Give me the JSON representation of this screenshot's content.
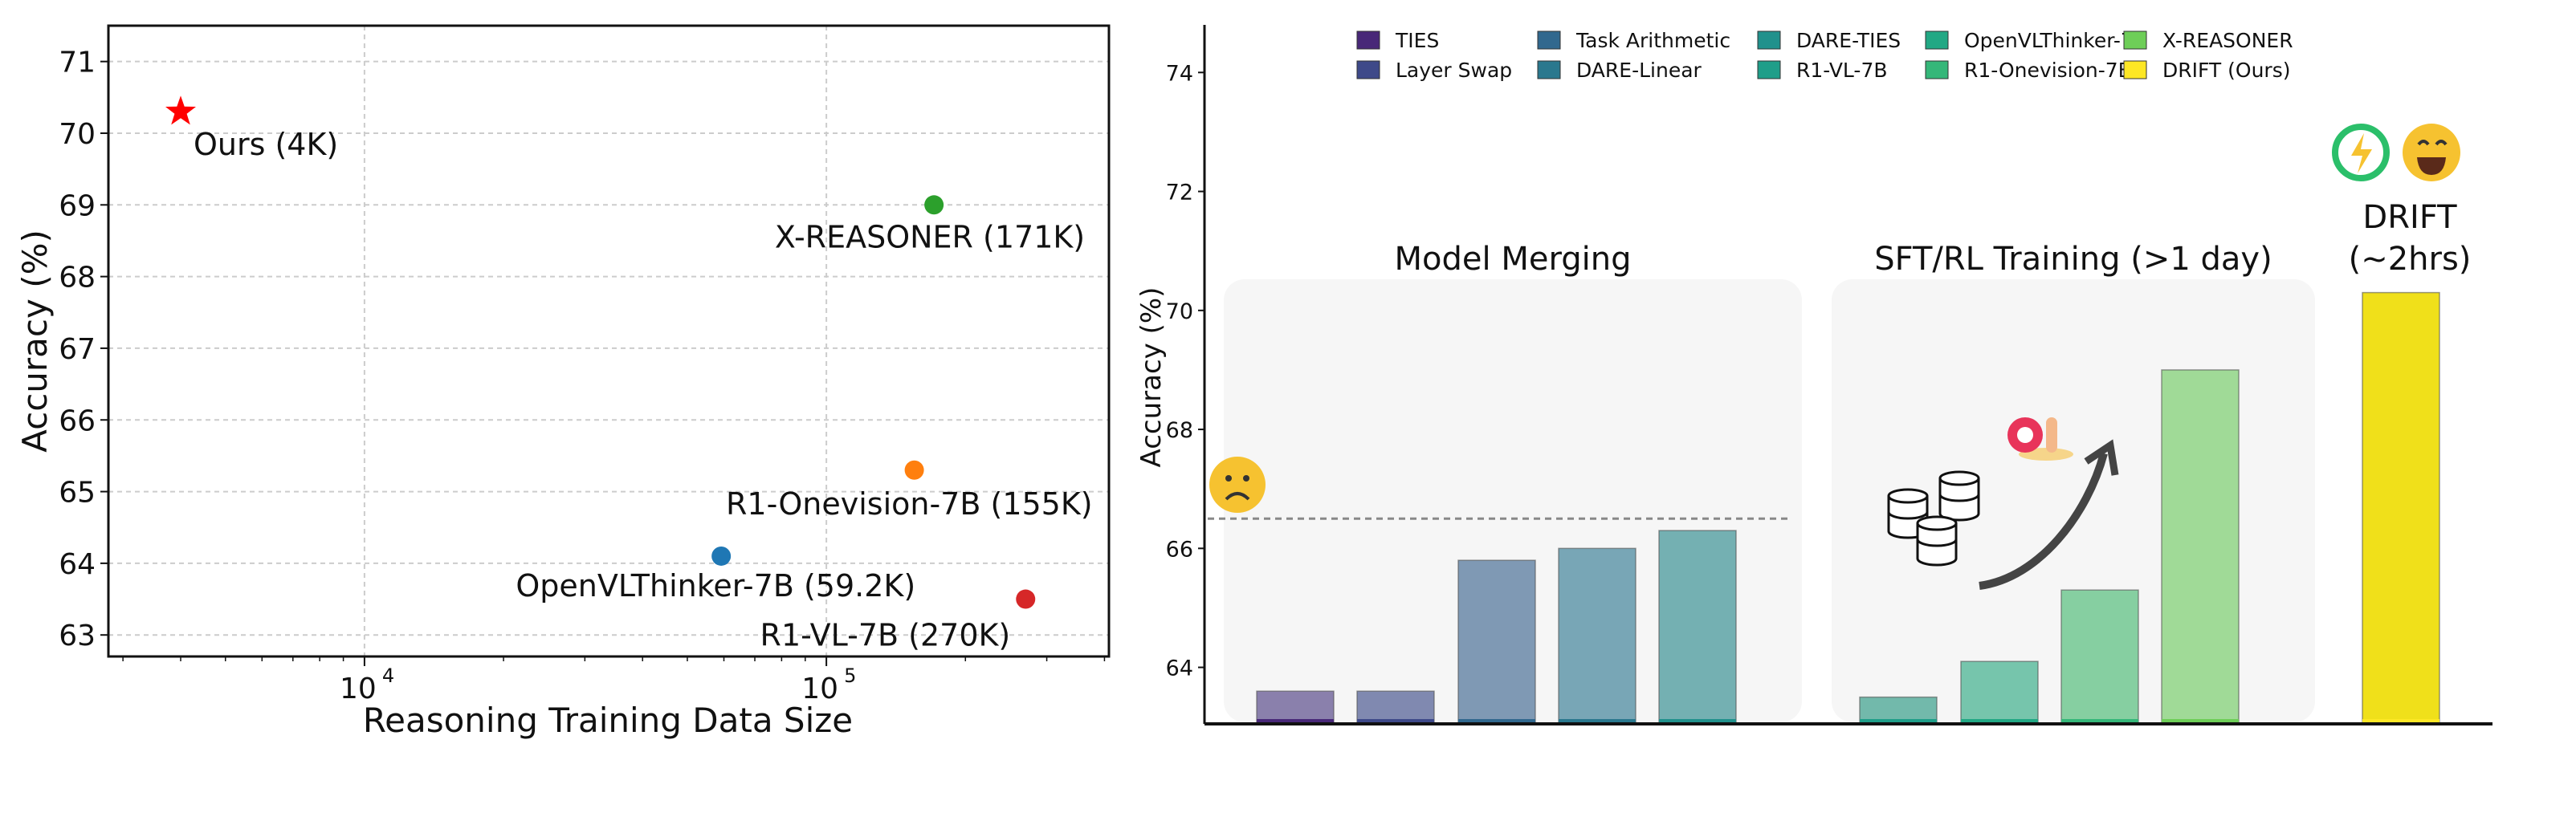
{
  "chart_data": [
    {
      "type": "scatter",
      "xlabel": "Reasoning Training Data Size",
      "ylabel": "Accuracy (%)",
      "xscale": "log",
      "xlim": [
        2790,
        409000
      ],
      "ylim": [
        62.7,
        71.5
      ],
      "xticks": [
        {
          "value": 10000,
          "label": "10",
          "exp": "4"
        },
        {
          "value": 100000,
          "label": "10",
          "exp": "5"
        }
      ],
      "yticks": [
        63,
        64,
        65,
        66,
        67,
        68,
        69,
        70,
        71
      ],
      "grid": true,
      "points": [
        {
          "name": "Ours",
          "label": "Ours  (4K)",
          "x": 4000,
          "y": 70.3,
          "marker": "star",
          "color": "#ff0000"
        },
        {
          "name": "X-REASONER",
          "label": "X-REASONER (171K)",
          "x": 171000,
          "y": 69.0,
          "marker": "circle",
          "color": "#2ca02c"
        },
        {
          "name": "R1-Onevision-7B",
          "label": "R1-Onevision-7B (155K)",
          "x": 155000,
          "y": 65.3,
          "marker": "circle",
          "color": "#ff7f0e"
        },
        {
          "name": "OpenVLThinker-7B",
          "label": "OpenVLThinker-7B (59.2K)",
          "x": 59200,
          "y": 64.1,
          "marker": "circle",
          "color": "#1f77b4"
        },
        {
          "name": "R1-VL-7B",
          "label": "R1-VL-7B (270K)",
          "x": 270000,
          "y": 63.5,
          "marker": "circle",
          "color": "#d62728"
        }
      ]
    },
    {
      "type": "bar",
      "ylabel": "Accuracy (%)",
      "ylim": [
        63.05,
        74.8
      ],
      "yticks": [
        64,
        66,
        68,
        70,
        72,
        74
      ],
      "legend_position": "top",
      "reference_line": 66.5,
      "groups": [
        {
          "title": "Model Merging",
          "members": [
            0,
            1,
            2,
            3,
            4
          ]
        },
        {
          "title": "SFT/RL Training (>1 day)",
          "members": [
            5,
            6,
            7,
            8
          ]
        },
        {
          "title": "DRIFT",
          "subtitle": "(~2hrs)",
          "members": [
            9
          ]
        }
      ],
      "categories": [
        "TIES",
        "Layer Swap",
        "Task Arithmetic",
        "DARE-Linear",
        "DARE-TIES",
        "R1-VL-7B",
        "OpenVLThinker-7B",
        "R1-Onevision-7B",
        "X-REASONER",
        "DRIFT (Ours)"
      ],
      "values": [
        63.6,
        63.6,
        65.8,
        66.0,
        66.3,
        63.5,
        64.1,
        65.3,
        69.0,
        70.3
      ],
      "legend_colors": [
        "#482878",
        "#3e4989",
        "#31688e",
        "#2a788e",
        "#21918c",
        "#1f9e89",
        "#22a884",
        "#35b779",
        "#6ece58",
        "#fde725"
      ],
      "bar_colors": [
        "#8a80ac",
        "#8089b0",
        "#7f99b4",
        "#78a6b6",
        "#74b0b2",
        "#72b9ab",
        "#76c5ac",
        "#86cfa1",
        "#a0da97",
        "#f0e01a"
      ]
    }
  ]
}
